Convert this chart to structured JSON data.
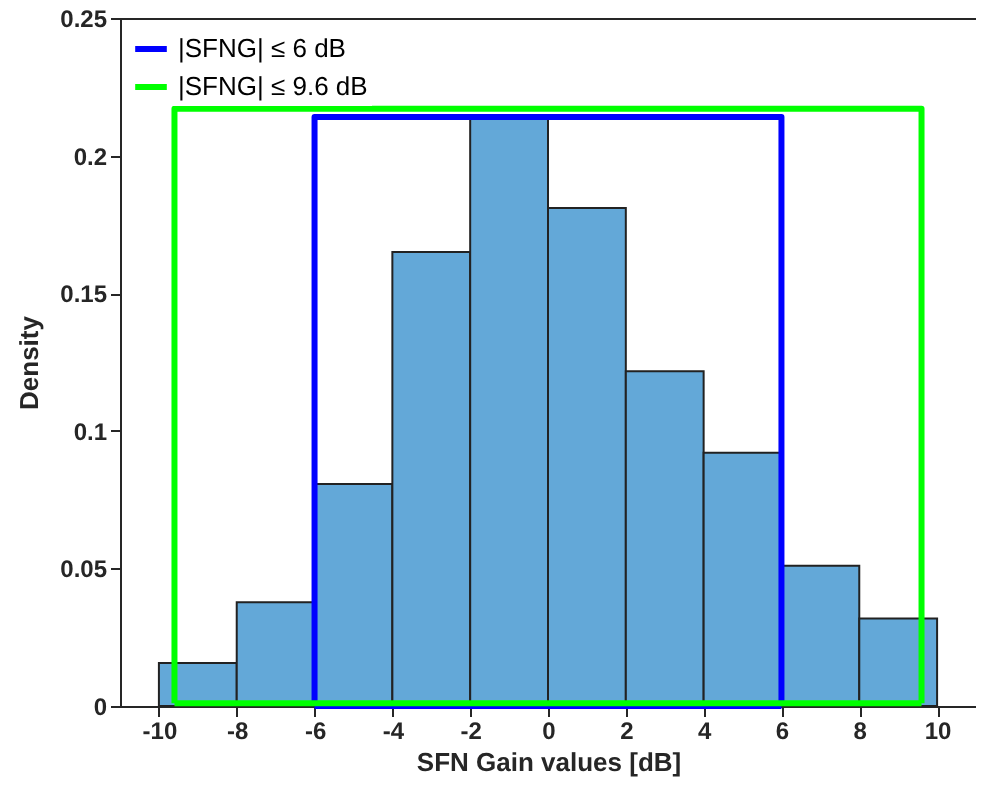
{
  "chart_data": {
    "type": "histogram",
    "xlabel": "SFN Gain values [dB]",
    "ylabel": "Density",
    "bins": [
      -10,
      -8,
      -6,
      -4,
      -2,
      0,
      2,
      4,
      6,
      8,
      10
    ],
    "values": [
      0.0156,
      0.0377,
      0.0807,
      0.165,
      0.214,
      0.181,
      0.1216,
      0.092,
      0.051,
      0.0318
    ],
    "color": "#63a8d8",
    "series": [
      {
        "name": "|SFNG| ≤ 6 dB",
        "type": "line",
        "color": "#0000ff",
        "x": [
          -6,
          -6,
          6,
          6
        ],
        "values": [
          0,
          0.214,
          0.214,
          0
        ]
      },
      {
        "name": "|SFNG| ≤ 9.6 dB",
        "type": "line",
        "color": "#00ff00",
        "x": [
          -9.6,
          -9.6,
          9.6,
          9.6
        ],
        "values": [
          0.001,
          0.217,
          0.217,
          0.001
        ]
      },
      {
        "type": "line",
        "color": "#0000ff",
        "x": [
          -6,
          6
        ],
        "values": [
          0,
          0
        ]
      },
      {
        "type": "line",
        "color": "#00ff00",
        "x": [
          -9.6,
          9.6
        ],
        "values": [
          0.001,
          0.001
        ]
      }
    ],
    "xlim": [
      -11,
      11
    ],
    "xticks": [
      -10,
      -8,
      -6,
      -4,
      -2,
      0,
      2,
      4,
      6,
      8,
      10
    ],
    "ylim": [
      0,
      0.25
    ],
    "yticks": [
      0,
      0.05,
      0.1,
      0.15,
      0.2,
      0.25
    ],
    "grid": false,
    "legend": "top left"
  }
}
